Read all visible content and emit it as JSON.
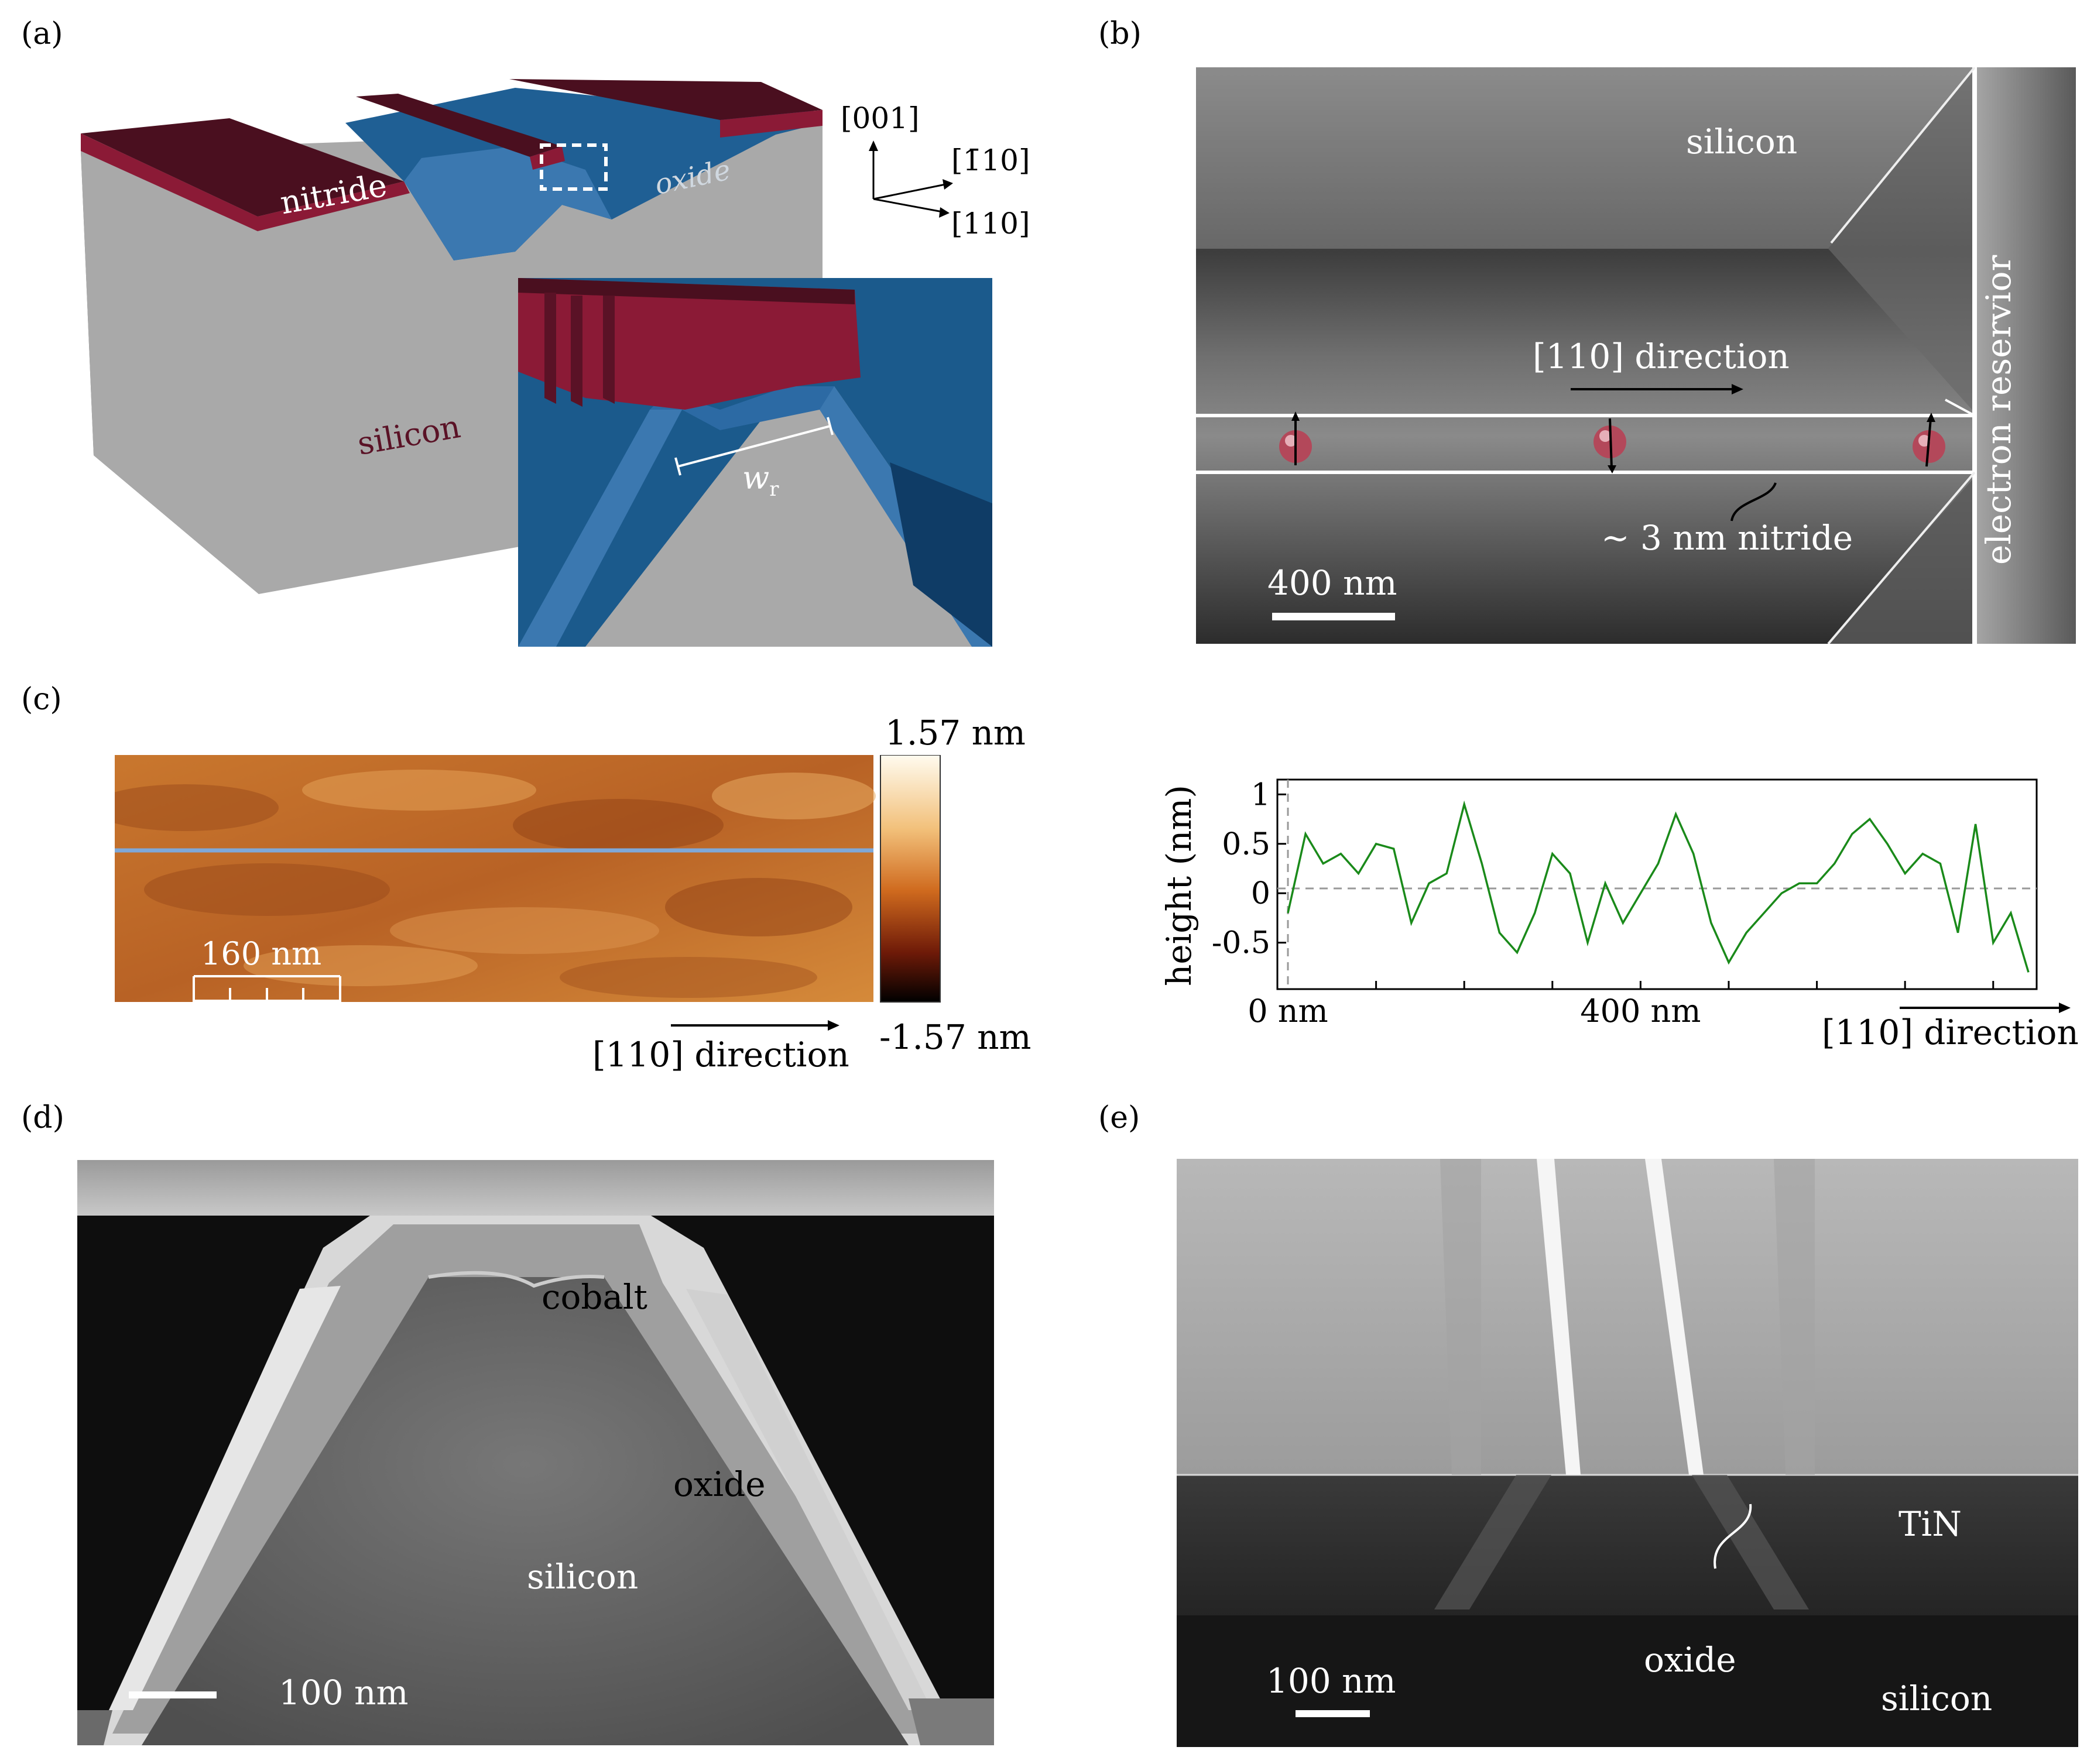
{
  "panels": {
    "a": {
      "label": "(a)",
      "nitride": "nitride",
      "oxide": "oxide",
      "silicon": "silicon",
      "axis_001": "[001]",
      "axis_m110": "[1̄10]",
      "axis_110": "[110]",
      "wr_main": "w",
      "wr_sub": "r"
    },
    "b": {
      "label": "(b)",
      "silicon": "silicon",
      "direction": "[110] direction",
      "electron_reservoir": "electron reservior",
      "nitride": "~ 3 nm nitride",
      "scalebar": "400 nm"
    },
    "c": {
      "label": "(c)",
      "scalebar": "160 nm",
      "colorbar_max": "1.57 nm",
      "colorbar_min": "-1.57 nm",
      "image_direction": "[110] direction",
      "plot_direction": "[110] direction"
    },
    "d": {
      "label": "(d)",
      "cobalt": "cobalt",
      "oxide": "oxide",
      "silicon": "silicon",
      "scalebar": "100 nm"
    },
    "e": {
      "label": "(e)",
      "tin": "TiN",
      "oxide": "oxide",
      "silicon": "silicon",
      "scalebar": "100 nm"
    }
  },
  "chart_data": {
    "type": "line",
    "ylabel": "height (nm)",
    "xticks": [
      "0 nm",
      "400 nm"
    ],
    "yticks": [
      "1",
      "0.5",
      "0",
      "-0.5"
    ],
    "xlim": [
      0,
      840
    ],
    "ylim": [
      -0.97,
      1.15
    ],
    "reference_line": 0,
    "grid": false,
    "series": [
      {
        "color": "#1a8a1a",
        "x": [
          0,
          20,
          40,
          60,
          80,
          100,
          120,
          140,
          160,
          180,
          200,
          220,
          240,
          260,
          280,
          300,
          320,
          340,
          360,
          380,
          400,
          420,
          440,
          460,
          480,
          500,
          520,
          540,
          560,
          580,
          600,
          620,
          640,
          660,
          680,
          700,
          720,
          740,
          760,
          780,
          800,
          820,
          840
        ],
        "y": [
          -0.2,
          0.6,
          0.3,
          0.4,
          0.2,
          0.5,
          0.45,
          -0.3,
          0.1,
          0.2,
          0.9,
          0.3,
          -0.4,
          -0.6,
          -0.2,
          0.4,
          0.2,
          -0.5,
          0.1,
          -0.3,
          0.0,
          0.3,
          0.8,
          0.4,
          -0.3,
          -0.7,
          -0.4,
          -0.2,
          0.0,
          0.1,
          0.1,
          0.3,
          0.6,
          0.75,
          0.5,
          0.2,
          0.4,
          0.3,
          -0.4,
          0.7,
          -0.5,
          -0.2,
          -0.8
        ]
      }
    ]
  }
}
